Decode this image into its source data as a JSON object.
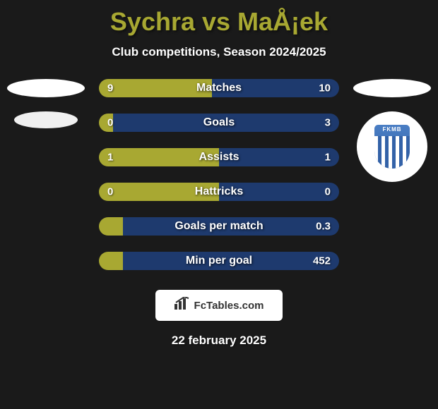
{
  "title": "Sychra vs MaÅ¡ek",
  "subtitle": "Club competitions, Season 2024/2025",
  "date": "22 february 2025",
  "footer_logo_text": "FcTables.com",
  "colors": {
    "background": "#1a1a1a",
    "title_color": "#a8a832",
    "text_color": "#ffffff",
    "bar_left": "#a8a832",
    "bar_right": "#1e3a6e",
    "shield_primary": "#3362a8",
    "shield_label": "FKMB"
  },
  "stats": [
    {
      "label": "Matches",
      "left_value": "9",
      "right_value": "10",
      "left_pct": 47
    },
    {
      "label": "Goals",
      "left_value": "0",
      "right_value": "3",
      "left_pct": 6
    },
    {
      "label": "Assists",
      "left_value": "1",
      "right_value": "1",
      "left_pct": 50
    },
    {
      "label": "Hattricks",
      "left_value": "0",
      "right_value": "0",
      "left_pct": 50
    },
    {
      "label": "Goals per match",
      "left_value": "",
      "right_value": "0.3",
      "left_pct": 10
    },
    {
      "label": "Min per goal",
      "left_value": "",
      "right_value": "452",
      "left_pct": 10
    }
  ]
}
